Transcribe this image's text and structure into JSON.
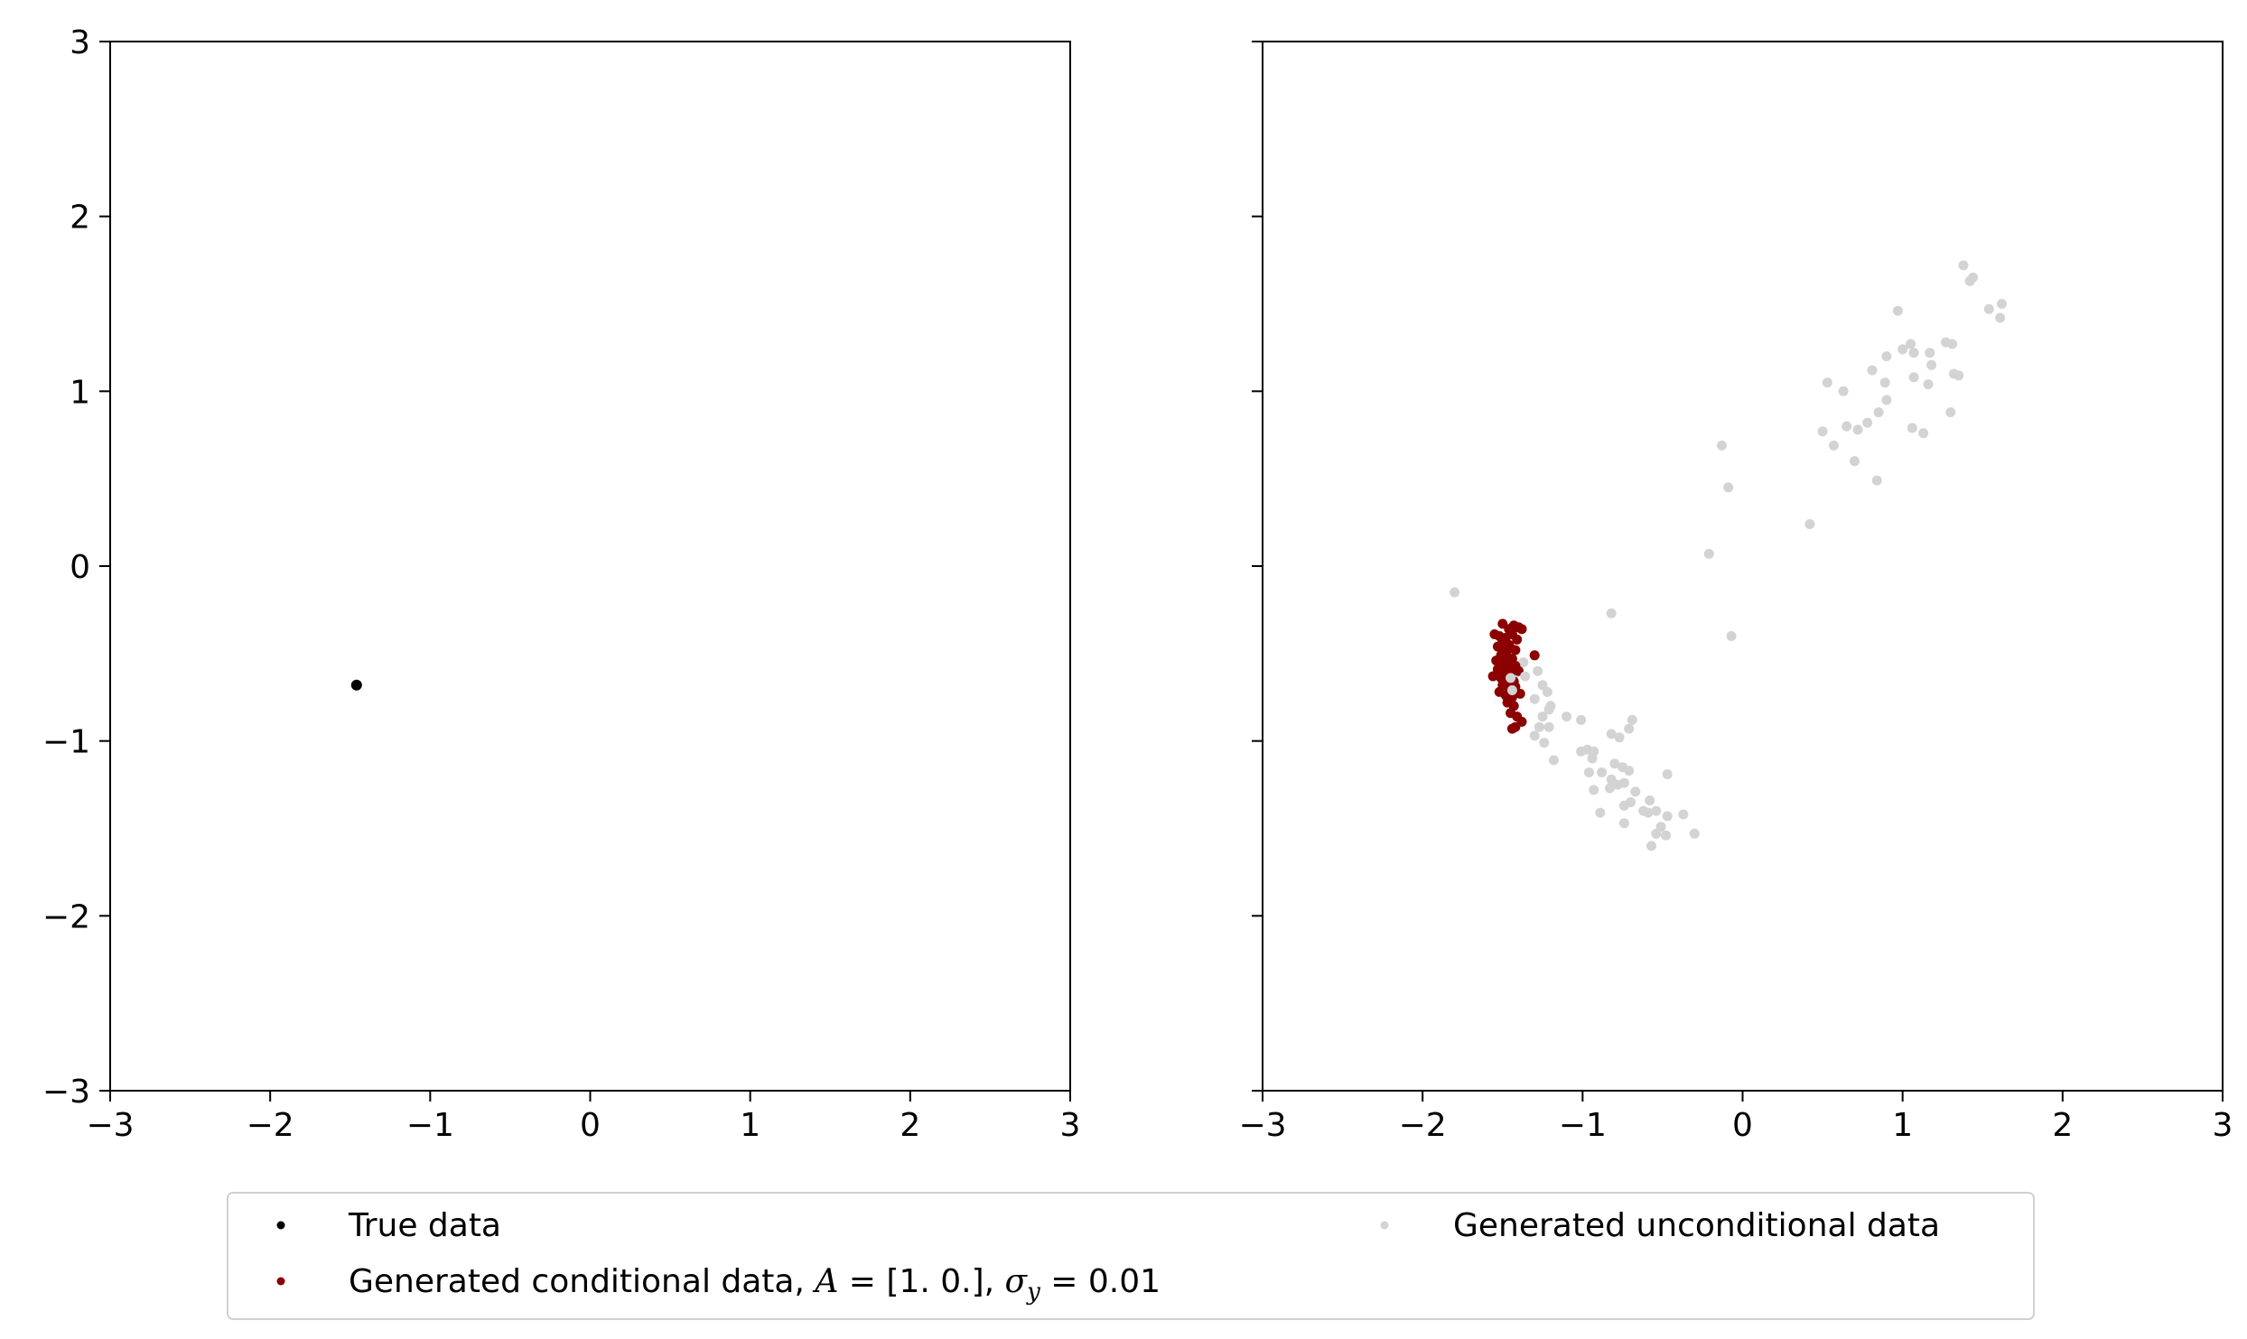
{
  "chart_data": [
    {
      "type": "scatter",
      "panel": "left",
      "xlim": [
        -3,
        3
      ],
      "ylim": [
        -3,
        3
      ],
      "xticks": [
        -3,
        -2,
        -1,
        0,
        1,
        2,
        3
      ],
      "yticks": [
        -3,
        -2,
        -1,
        0,
        1,
        2,
        3
      ],
      "xtick_labels": [
        "−3",
        "−2",
        "−1",
        "0",
        "1",
        "2",
        "3"
      ],
      "ytick_labels": [
        "−3",
        "−2",
        "−1",
        "0",
        "1",
        "2",
        "3"
      ],
      "series": [
        {
          "name": "True data",
          "color": "#000000",
          "points": [
            [
              -1.46,
              -0.68
            ]
          ]
        }
      ]
    },
    {
      "type": "scatter",
      "panel": "right",
      "xlim": [
        -3,
        3
      ],
      "ylim": [
        -3,
        3
      ],
      "xticks": [
        -3,
        -2,
        -1,
        0,
        1,
        2,
        3
      ],
      "xtick_labels": [
        "−3",
        "−2",
        "−1",
        "0",
        "1",
        "2",
        "3"
      ],
      "yticks": [
        -3,
        -2,
        -1,
        0,
        1,
        2,
        3
      ],
      "series": [
        {
          "name": "Generated unconditional data",
          "color": "#d3d3d3",
          "points": [
            [
              1.38,
              1.72
            ],
            [
              1.42,
              1.63
            ],
            [
              1.44,
              1.65
            ],
            [
              1.54,
              1.47
            ],
            [
              1.62,
              1.5
            ],
            [
              1.61,
              1.42
            ],
            [
              0.97,
              1.46
            ],
            [
              1.27,
              1.28
            ],
            [
              1.31,
              1.27
            ],
            [
              1.05,
              1.27
            ],
            [
              1.0,
              1.24
            ],
            [
              1.07,
              1.22
            ],
            [
              1.17,
              1.22
            ],
            [
              0.9,
              1.2
            ],
            [
              1.18,
              1.15
            ],
            [
              1.32,
              1.1
            ],
            [
              1.35,
              1.09
            ],
            [
              0.81,
              1.12
            ],
            [
              1.07,
              1.08
            ],
            [
              1.16,
              1.04
            ],
            [
              0.53,
              1.05
            ],
            [
              0.63,
              1.0
            ],
            [
              0.89,
              1.05
            ],
            [
              0.9,
              0.95
            ],
            [
              1.3,
              0.88
            ],
            [
              0.85,
              0.88
            ],
            [
              0.78,
              0.82
            ],
            [
              0.65,
              0.8
            ],
            [
              0.5,
              0.77
            ],
            [
              1.06,
              0.79
            ],
            [
              1.13,
              0.76
            ],
            [
              0.72,
              0.78
            ],
            [
              0.57,
              0.69
            ],
            [
              0.7,
              0.6
            ],
            [
              0.84,
              0.49
            ],
            [
              -0.13,
              0.69
            ],
            [
              -0.09,
              0.45
            ],
            [
              0.42,
              0.24
            ],
            [
              -0.21,
              0.07
            ],
            [
              -1.8,
              -0.15
            ],
            [
              -0.82,
              -0.27
            ],
            [
              -0.07,
              -0.4
            ],
            [
              -1.37,
              -0.55
            ],
            [
              -1.28,
              -0.6
            ],
            [
              -1.43,
              -0.62
            ],
            [
              -1.25,
              -0.68
            ],
            [
              -1.22,
              -0.72
            ],
            [
              -1.3,
              -0.76
            ],
            [
              -1.2,
              -0.8
            ],
            [
              -1.25,
              -0.86
            ],
            [
              -1.21,
              -0.82
            ],
            [
              -1.1,
              -0.86
            ],
            [
              -1.27,
              -0.92
            ],
            [
              -1.21,
              -0.92
            ],
            [
              -1.01,
              -0.88
            ],
            [
              -0.69,
              -0.88
            ],
            [
              -0.71,
              -0.93
            ],
            [
              -1.3,
              -0.97
            ],
            [
              -1.24,
              -1.01
            ],
            [
              -0.82,
              -0.96
            ],
            [
              -0.77,
              -0.98
            ],
            [
              -0.97,
              -1.05
            ],
            [
              -1.01,
              -1.06
            ],
            [
              -0.93,
              -1.06
            ],
            [
              -1.18,
              -1.11
            ],
            [
              -0.94,
              -1.1
            ],
            [
              -0.8,
              -1.13
            ],
            [
              -0.75,
              -1.15
            ],
            [
              -0.71,
              -1.17
            ],
            [
              -0.88,
              -1.18
            ],
            [
              -0.96,
              -1.18
            ],
            [
              -0.47,
              -1.19
            ],
            [
              -0.82,
              -1.22
            ],
            [
              -0.78,
              -1.25
            ],
            [
              -0.83,
              -1.27
            ],
            [
              -0.74,
              -1.24
            ],
            [
              -0.67,
              -1.29
            ],
            [
              -0.93,
              -1.28
            ],
            [
              -0.58,
              -1.34
            ],
            [
              -0.7,
              -1.35
            ],
            [
              -0.74,
              -1.37
            ],
            [
              -0.62,
              -1.4
            ],
            [
              -0.54,
              -1.4
            ],
            [
              -0.59,
              -1.41
            ],
            [
              -0.47,
              -1.43
            ],
            [
              -0.37,
              -1.42
            ],
            [
              -0.89,
              -1.41
            ],
            [
              -0.74,
              -1.47
            ],
            [
              -0.51,
              -1.49
            ],
            [
              -0.54,
              -1.53
            ],
            [
              -0.48,
              -1.54
            ],
            [
              -0.3,
              -1.53
            ],
            [
              -0.57,
              -1.6
            ]
          ]
        },
        {
          "name": "Generated conditional data, A = [1. 0.], σy = 0.01",
          "color": "#8b0000",
          "points": [
            [
              -1.5,
              -0.33
            ],
            [
              -1.46,
              -0.36
            ],
            [
              -1.43,
              -0.34
            ],
            [
              -1.4,
              -0.35
            ],
            [
              -1.38,
              -0.36
            ],
            [
              -1.55,
              -0.39
            ],
            [
              -1.52,
              -0.4
            ],
            [
              -1.48,
              -0.41
            ],
            [
              -1.44,
              -0.39
            ],
            [
              -1.41,
              -0.42
            ],
            [
              -1.5,
              -0.43
            ],
            [
              -1.46,
              -0.45
            ],
            [
              -1.53,
              -0.46
            ],
            [
              -1.49,
              -0.48
            ],
            [
              -1.45,
              -0.47
            ],
            [
              -1.42,
              -0.48
            ],
            [
              -1.51,
              -0.51
            ],
            [
              -1.47,
              -0.52
            ],
            [
              -1.44,
              -0.53
            ],
            [
              -1.3,
              -0.51
            ],
            [
              -1.54,
              -0.54
            ],
            [
              -1.5,
              -0.55
            ],
            [
              -1.46,
              -0.56
            ],
            [
              -1.42,
              -0.57
            ],
            [
              -1.53,
              -0.59
            ],
            [
              -1.49,
              -0.6
            ],
            [
              -1.45,
              -0.61
            ],
            [
              -1.4,
              -0.6
            ],
            [
              -1.56,
              -0.63
            ],
            [
              -1.51,
              -0.64
            ],
            [
              -1.47,
              -0.65
            ],
            [
              -1.43,
              -0.66
            ],
            [
              -1.5,
              -0.68
            ],
            [
              -1.46,
              -0.7
            ],
            [
              -1.42,
              -0.69
            ],
            [
              -1.52,
              -0.72
            ],
            [
              -1.48,
              -0.74
            ],
            [
              -1.44,
              -0.75
            ],
            [
              -1.39,
              -0.73
            ],
            [
              -1.47,
              -0.78
            ],
            [
              -1.43,
              -0.8
            ],
            [
              -1.45,
              -0.84
            ],
            [
              -1.41,
              -0.86
            ],
            [
              -1.38,
              -0.89
            ],
            [
              -1.44,
              -0.93
            ],
            [
              -1.42,
              -0.92
            ]
          ]
        },
        {
          "name": "Generated unconditional data (overlay)",
          "color": "#d3d3d3",
          "points": [
            [
              -1.45,
              -0.64
            ],
            [
              -1.36,
              -0.63
            ],
            [
              -1.44,
              -0.71
            ]
          ]
        }
      ]
    }
  ],
  "legend": {
    "placement": "bottom-center",
    "entries": [
      {
        "label": "True data",
        "color": "#000000"
      },
      {
        "label_prefix": "Generated conditional data, ",
        "label_math_a": "A",
        "label_eq_a": " = [1. 0.], ",
        "label_math_sigma": "σ",
        "label_math_sub": "y",
        "label_eq_sigma": " = 0.01",
        "color": "#8b0000"
      },
      {
        "label": "Generated unconditional data",
        "color": "#d3d3d3"
      }
    ]
  }
}
